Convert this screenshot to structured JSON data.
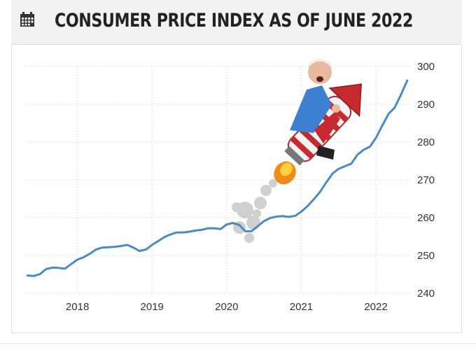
{
  "header": {
    "title": "CONSUMER PRICE INDEX AS OF JUNE 2022"
  },
  "chart_data": {
    "type": "line",
    "title": "CONSUMER PRICE INDEX AS OF JUNE 2022",
    "xlabel": "",
    "ylabel": "",
    "ylim": [
      240,
      300
    ],
    "xlim": [
      2017.3,
      2022.45
    ],
    "y_axis_position": "right",
    "grid": true,
    "y_ticks": [
      "240",
      "250",
      "260",
      "270",
      "280",
      "290",
      "300"
    ],
    "x_ticks": [
      "2018",
      "2019",
      "2020",
      "2021",
      "2022"
    ],
    "series": [
      {
        "color": "#4a8bc4",
        "x": [
          2017.33,
          2017.42,
          2017.5,
          2017.58,
          2017.67,
          2017.75,
          2017.83,
          2017.92,
          2018.0,
          2018.08,
          2018.17,
          2018.25,
          2018.33,
          2018.42,
          2018.5,
          2018.58,
          2018.67,
          2018.75,
          2018.83,
          2018.92,
          2019.0,
          2019.08,
          2019.17,
          2019.25,
          2019.33,
          2019.42,
          2019.5,
          2019.58,
          2019.67,
          2019.75,
          2019.83,
          2019.92,
          2020.0,
          2020.08,
          2020.17,
          2020.25,
          2020.33,
          2020.42,
          2020.5,
          2020.58,
          2020.67,
          2020.75,
          2020.83,
          2020.92,
          2021.0,
          2021.08,
          2021.17,
          2021.25,
          2021.33,
          2021.42,
          2021.5,
          2021.58,
          2021.67,
          2021.75,
          2021.83,
          2021.92,
          2022.0,
          2022.08,
          2022.17,
          2022.25,
          2022.33,
          2022.42
        ],
        "y": [
          244.7,
          244.6,
          245.1,
          246.4,
          246.8,
          246.7,
          246.5,
          247.8,
          248.9,
          249.5,
          250.5,
          251.6,
          252.1,
          252.2,
          252.3,
          252.5,
          252.8,
          252.1,
          251.2,
          251.6,
          252.8,
          253.8,
          254.9,
          255.6,
          256.1,
          256.1,
          256.3,
          256.6,
          256.8,
          257.2,
          257.2,
          257.0,
          258.2,
          258.6,
          258.1,
          256.4,
          256.4,
          257.8,
          259.1,
          259.9,
          260.3,
          260.4,
          260.2,
          260.5,
          261.6,
          263.0,
          264.9,
          266.8,
          269.2,
          271.7,
          272.9,
          273.6,
          274.3,
          276.6,
          277.9,
          278.8,
          281.1,
          284.2,
          287.5,
          289.1,
          292.3,
          296.3
        ]
      }
    ]
  },
  "icons": {
    "header_icon": "calendar-icon",
    "overlay": "rocket-rider-illustration"
  }
}
